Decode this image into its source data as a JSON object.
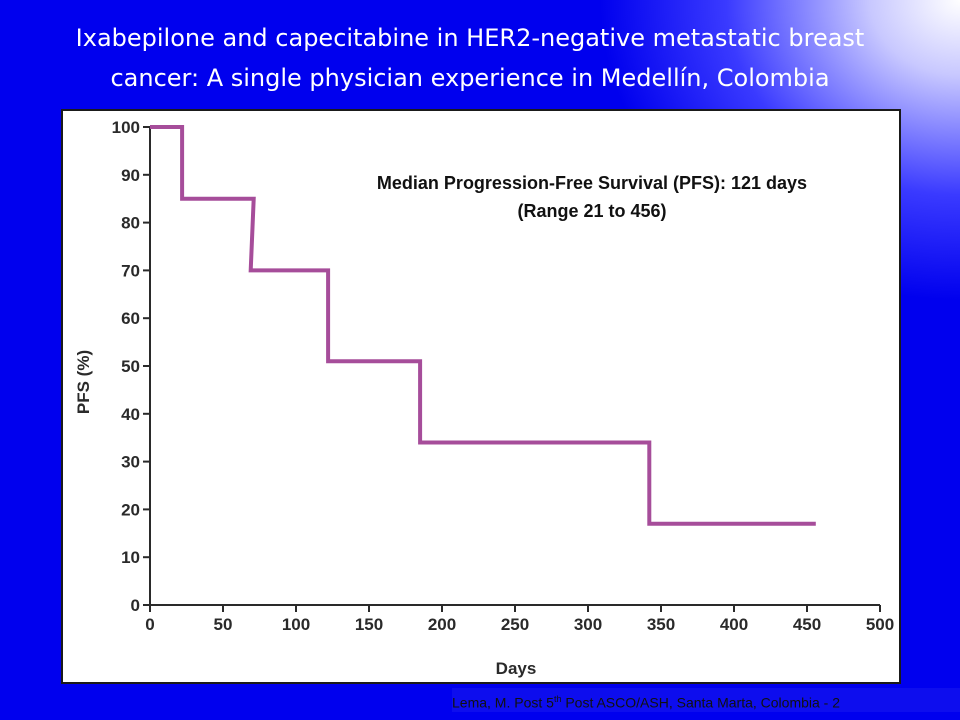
{
  "slide": {
    "title_line1": "Ixabepilone and capecitabine in HER2-negative metastatic breast",
    "title_line2": "cancer: A single physician experience in Medellín, Colombia",
    "footer_prefix": "Lema, M. Post 5",
    "footer_superscript": "th",
    "footer_suffix": " Post ASCO/ASH, Santa Marta, Colombia - 2"
  },
  "colors": {
    "background": "#0000ee",
    "title_text": "#ffffff",
    "curve": "#a64d9a",
    "axis": "#2a2a2a"
  },
  "chart_data": {
    "type": "line",
    "step": true,
    "title": "",
    "xlabel": "Days",
    "ylabel": "PFS (%)",
    "xlim": [
      0,
      500
    ],
    "ylim": [
      0,
      100
    ],
    "x_ticks": [
      0,
      50,
      100,
      150,
      200,
      250,
      300,
      350,
      400,
      450,
      500
    ],
    "y_ticks": [
      0,
      10,
      20,
      30,
      40,
      50,
      60,
      70,
      80,
      90,
      100
    ],
    "grid": false,
    "annotations": [
      "Median Progression-Free Survival (PFS): 121 days",
      "(Range 21 to 456)"
    ],
    "series": [
      {
        "x": [
          0,
          22,
          22,
          71,
          69,
          122,
          122,
          185,
          185,
          342,
          342,
          456
        ],
        "y": [
          100,
          100,
          85,
          85,
          70,
          70,
          51,
          51,
          34,
          34,
          17,
          17
        ]
      }
    ]
  }
}
